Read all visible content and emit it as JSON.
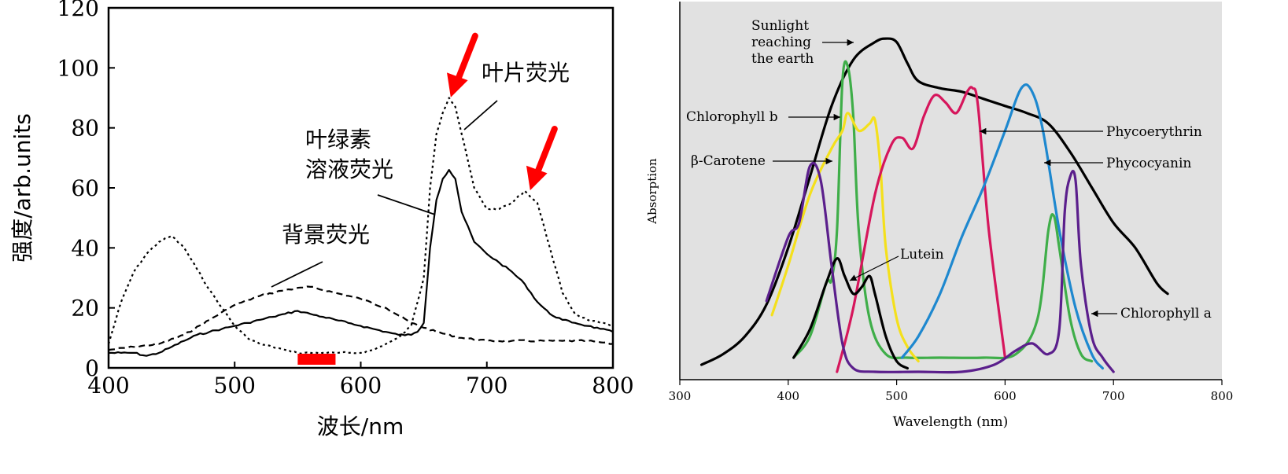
{
  "chart_data": [
    {
      "type": "line",
      "title": "",
      "xlabel": "波长/nm",
      "ylabel": "强度/arb.units",
      "xlim": [
        400,
        800
      ],
      "ylim": [
        0,
        120
      ],
      "xticks": [
        400,
        500,
        600,
        700,
        800
      ],
      "yticks": [
        0,
        20,
        40,
        60,
        80,
        100,
        120
      ],
      "grid": false,
      "legend": "none",
      "series": [
        {
          "name": "叶片荧光",
          "style": "dotted",
          "x": [
            400,
            410,
            420,
            430,
            440,
            450,
            460,
            470,
            480,
            490,
            500,
            510,
            520,
            530,
            540,
            550,
            560,
            570,
            580,
            590,
            600,
            610,
            620,
            630,
            640,
            650,
            655,
            660,
            665,
            670,
            675,
            680,
            690,
            700,
            710,
            720,
            730,
            740,
            750,
            760,
            770,
            780,
            790,
            800
          ],
          "y": [
            8,
            22,
            32,
            38,
            42,
            44,
            40,
            33,
            26,
            20,
            14,
            10,
            8,
            7,
            6,
            5,
            5,
            5,
            5,
            5,
            5,
            6,
            8,
            10,
            14,
            30,
            60,
            78,
            85,
            90,
            87,
            78,
            60,
            53,
            53,
            55,
            59,
            55,
            40,
            25,
            18,
            16,
            15,
            14
          ]
        },
        {
          "name": "叶绿素溶液荧光",
          "style": "solid",
          "x": [
            400,
            410,
            420,
            430,
            440,
            450,
            460,
            470,
            480,
            490,
            500,
            510,
            520,
            530,
            540,
            550,
            560,
            570,
            580,
            590,
            600,
            610,
            620,
            630,
            640,
            645,
            650,
            655,
            660,
            665,
            670,
            675,
            680,
            690,
            700,
            710,
            720,
            730,
            740,
            750,
            760,
            770,
            780,
            790,
            800
          ],
          "y": [
            5,
            5,
            5,
            4,
            5,
            7,
            9,
            11,
            12,
            13,
            14,
            15,
            16,
            17,
            18,
            19,
            18,
            17,
            16,
            15,
            14,
            13,
            12,
            11,
            11,
            12,
            15,
            40,
            56,
            63,
            66,
            63,
            52,
            42,
            38,
            35,
            32,
            28,
            22,
            18,
            16,
            15,
            14,
            13,
            12
          ]
        },
        {
          "name": "背景荧光",
          "style": "dashed",
          "x": [
            400,
            420,
            440,
            460,
            480,
            500,
            520,
            540,
            560,
            580,
            600,
            620,
            640,
            660,
            680,
            700,
            720,
            740,
            760,
            780,
            800
          ],
          "y": [
            6,
            7,
            8,
            11,
            16,
            21,
            24,
            26,
            27,
            25,
            23,
            20,
            15,
            12,
            10,
            9,
            9,
            9,
            9,
            9,
            8
          ]
        }
      ],
      "annotations": {
        "leaf_label": "叶片荧光",
        "solution_label_line1": "叶绿素",
        "solution_label_line2": "溶液荧光",
        "background_label": "背景荧光"
      },
      "marker_bar": {
        "x_start": 550,
        "x_end": 580,
        "color": "#ff0000"
      },
      "arrow_targets": [
        {
          "x": 672,
          "y": 91
        },
        {
          "x": 735,
          "y": 60
        }
      ],
      "arrow_color": "#ff0000"
    },
    {
      "type": "line",
      "title": "",
      "xlabel": "Wavelength (nm)",
      "ylabel": "Absorption",
      "xlim": [
        300,
        800
      ],
      "ylim": [
        0,
        100
      ],
      "xticks": [
        300,
        400,
        500,
        600,
        700,
        800
      ],
      "grid": false,
      "legend": "none",
      "background": "#e1e1e1",
      "series": [
        {
          "name": "Sunlight reaching the earth",
          "color": "#000000",
          "x": [
            320,
            340,
            360,
            380,
            400,
            420,
            440,
            460,
            480,
            490,
            500,
            510,
            520,
            540,
            560,
            580,
            600,
            620,
            640,
            660,
            680,
            700,
            720,
            740,
            750
          ],
          "y": [
            2,
            5,
            10,
            19,
            35,
            55,
            75,
            88,
            93,
            94,
            93,
            87,
            82,
            80,
            79,
            77,
            75,
            73,
            70,
            62,
            52,
            42,
            35,
            25,
            22
          ]
        },
        {
          "name": "Chlorophyll b",
          "color": "#3fae49",
          "x": [
            405,
            420,
            435,
            440,
            445,
            450,
            455,
            460,
            465,
            475,
            490,
            510,
            540,
            580,
            610,
            630,
            640,
            645,
            650,
            660,
            670,
            680
          ],
          "y": [
            4,
            10,
            25,
            26,
            40,
            82,
            86,
            72,
            40,
            15,
            5,
            4,
            4,
            4,
            5,
            15,
            40,
            44,
            35,
            15,
            5,
            3
          ]
        },
        {
          "name": "β-Carotene",
          "color": "#f4e01c",
          "x": [
            385,
            400,
            420,
            440,
            450,
            455,
            465,
            475,
            480,
            485,
            490,
            500,
            510,
            520
          ],
          "y": [
            16,
            30,
            50,
            63,
            68,
            73,
            68,
            70,
            71,
            58,
            35,
            15,
            7,
            3
          ]
        },
        {
          "name": "Phycoerythrin",
          "color": "#d6165c",
          "x": [
            445,
            460,
            480,
            495,
            505,
            515,
            525,
            535,
            545,
            555,
            565,
            570,
            575,
            585,
            600
          ],
          "y": [
            0,
            18,
            50,
            64,
            66,
            63,
            72,
            78,
            76,
            73,
            79,
            80,
            75,
            40,
            4
          ]
        },
        {
          "name": "Phycocyanin",
          "color": "#1e88cf",
          "x": [
            505,
            520,
            540,
            560,
            580,
            600,
            615,
            625,
            635,
            650,
            665,
            680,
            690
          ],
          "y": [
            4,
            10,
            22,
            38,
            52,
            68,
            80,
            79,
            68,
            40,
            18,
            5,
            1
          ]
        },
        {
          "name": "Lutein",
          "color": "#000000",
          "x": [
            405,
            420,
            435,
            445,
            452,
            460,
            468,
            475,
            480,
            490,
            500,
            510
          ],
          "y": [
            4,
            12,
            25,
            32,
            27,
            22,
            24,
            27,
            22,
            10,
            3,
            1
          ]
        },
        {
          "name": "Chlorophyll a",
          "color": "#5b1f8c",
          "x": [
            380,
            400,
            410,
            420,
            430,
            440,
            450,
            460,
            480,
            520,
            560,
            590,
            610,
            625,
            640,
            650,
            655,
            660,
            665,
            670,
            680,
            690,
            700
          ],
          "y": [
            20,
            38,
            42,
            58,
            54,
            30,
            8,
            1,
            0,
            0,
            0,
            2,
            6,
            8,
            5,
            12,
            45,
            55,
            54,
            30,
            10,
            4,
            0
          ]
        }
      ],
      "labels": {
        "sunlight_1": "Sunlight",
        "sunlight_2": "reaching",
        "sunlight_3": "the earth",
        "chl_b": "Chlorophyll b",
        "carotene": "β-Carotene",
        "lutein": "Lutein",
        "phycoerythrin": "Phycoerythrin",
        "phycocyanin": "Phycocyanin",
        "chl_a": "Chlorophyll a"
      }
    }
  ]
}
